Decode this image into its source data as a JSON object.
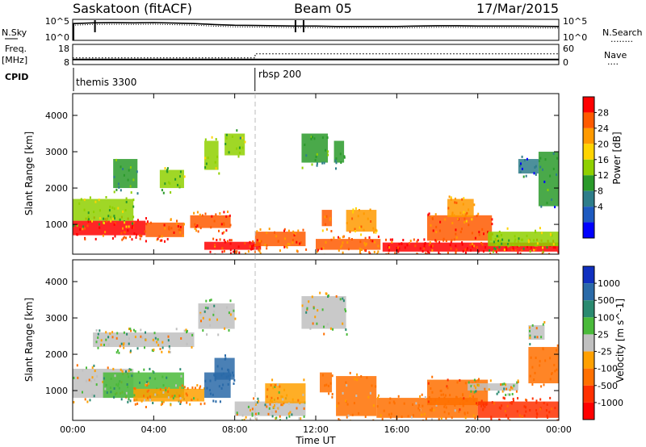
{
  "header": {
    "site": "Saskatoon (fitACF)",
    "beam": "Beam 05",
    "date": "17/Mar/2015"
  },
  "noise_panel": {
    "left_label": "N.Sky",
    "left_ticks": [
      "10^5",
      "10^0"
    ],
    "right_ticks": [
      "10^5",
      "10^0"
    ],
    "right_label": "N.Search",
    "right_key": "........"
  },
  "freq_panel": {
    "left_label_1": "Freq.",
    "left_label_2": "[MHz]",
    "left_ticks": [
      "18",
      "8"
    ],
    "right_ticks": [
      "60",
      "0"
    ],
    "right_label": "Nave",
    "right_key": "....",
    "ylim_left": [
      8,
      18
    ],
    "ylim_right": [
      0,
      60
    ]
  },
  "cpid_panel": {
    "label": "CPID",
    "modes": [
      {
        "start_hour": 0,
        "name": "themis 3300"
      },
      {
        "start_hour": 9,
        "name": "rbsp 200"
      }
    ]
  },
  "x_axis": {
    "label": "Time UT",
    "ticks": [
      "00:00",
      "04:00",
      "08:00",
      "12:00",
      "16:00",
      "20:00",
      "00:00"
    ],
    "range_hours": [
      0,
      24
    ]
  },
  "power_colorbar": {
    "label": "Power [dB]",
    "ticks": [
      "28",
      "24",
      "20",
      "16",
      "12",
      "8",
      "4"
    ],
    "colors": [
      "#ff0000",
      "#ff5a00",
      "#ff9a00",
      "#ffd400",
      "#8fd000",
      "#2a9a2a",
      "#2e7d8a",
      "#1e5ac0",
      "#0000ff"
    ]
  },
  "velocity_colorbar": {
    "label": "Velocity [m s^-1]",
    "ticks": [
      "1000",
      "500",
      "100",
      "25",
      "-25",
      "-100",
      "-500",
      "-1000"
    ],
    "colors": [
      "#1030c0",
      "#2a6aa8",
      "#2a8a70",
      "#4aba3a",
      "#c0c0c0",
      "#ffa000",
      "#ff7000",
      "#ff3000",
      "#ff0000"
    ]
  },
  "chart_data": [
    {
      "type": "line",
      "series": [
        {
          "x": [
            0,
            0.5,
            1,
            2,
            3,
            4,
            5,
            6,
            7,
            8,
            9,
            10,
            11,
            12,
            13,
            14,
            15,
            16,
            17,
            18,
            19,
            20,
            21,
            22,
            23,
            24
          ],
          "y": [
            10000,
            12000,
            15000,
            16000,
            15000,
            17000,
            13000,
            10000,
            6000,
            4000,
            3500,
            3000,
            2500,
            2500,
            2000,
            2000,
            2000,
            2000,
            2500,
            3000,
            3000,
            2500,
            2500,
            2500,
            2200,
            2000
          ]
        }
      ],
      "yscale": "log",
      "ylim": [
        1,
        100000
      ]
    },
    {
      "type": "line",
      "series": [
        {
          "x": [
            0,
            24
          ],
          "y": [
            10.5,
            10.5
          ]
        },
        {
          "x": [
            0,
            9,
            9.01,
            24
          ],
          "y": [
            20,
            20,
            32,
            32
          ]
        }
      ],
      "ylim": [
        8,
        18
      ]
    },
    {
      "type": "heatmap",
      "xlabel": "Time UT",
      "ylabel": "Slant Range [km]",
      "ylim": [
        180,
        4600
      ],
      "yticks": [
        1000,
        2000,
        3000,
        4000
      ],
      "quantity": "Power [dB]",
      "regions": [
        {
          "t0": 0.0,
          "t1": 3.6,
          "r0": 700,
          "r1": 1100,
          "value": 28
        },
        {
          "t0": 3.6,
          "t1": 5.5,
          "r0": 650,
          "r1": 1050,
          "value": 26
        },
        {
          "t0": 0.0,
          "t1": 3.0,
          "r0": 1100,
          "r1": 1700,
          "value": 14
        },
        {
          "t0": 2.0,
          "t1": 3.2,
          "r0": 2000,
          "r1": 2800,
          "value": 10
        },
        {
          "t0": 4.3,
          "t1": 5.5,
          "r0": 2000,
          "r1": 2500,
          "value": 12
        },
        {
          "t0": 5.8,
          "t1": 7.8,
          "r0": 900,
          "r1": 1250,
          "value": 26
        },
        {
          "t0": 6.5,
          "t1": 7.2,
          "r0": 2500,
          "r1": 3300,
          "value": 14
        },
        {
          "t0": 7.5,
          "t1": 8.5,
          "r0": 2900,
          "r1": 3500,
          "value": 12
        },
        {
          "t0": 6.5,
          "t1": 9.3,
          "r0": 300,
          "r1": 520,
          "value": 28
        },
        {
          "t0": 9.0,
          "t1": 11.5,
          "r0": 400,
          "r1": 800,
          "value": 24
        },
        {
          "t0": 11.3,
          "t1": 12.6,
          "r0": 2700,
          "r1": 3500,
          "value": 10
        },
        {
          "t0": 12.9,
          "t1": 13.4,
          "r0": 2700,
          "r1": 3300,
          "value": 8
        },
        {
          "t0": 12.0,
          "t1": 15.2,
          "r0": 300,
          "r1": 600,
          "value": 26
        },
        {
          "t0": 12.3,
          "t1": 12.8,
          "r0": 950,
          "r1": 1400,
          "value": 24
        },
        {
          "t0": 13.5,
          "t1": 15.0,
          "r0": 800,
          "r1": 1400,
          "value": 20
        },
        {
          "t0": 15.3,
          "t1": 24.0,
          "r0": 250,
          "r1": 500,
          "value": 28
        },
        {
          "t0": 17.5,
          "t1": 20.7,
          "r0": 550,
          "r1": 1250,
          "value": 26
        },
        {
          "t0": 18.5,
          "t1": 19.8,
          "r0": 1200,
          "r1": 1700,
          "value": 22
        },
        {
          "t0": 20.5,
          "t1": 24.0,
          "r0": 400,
          "r1": 800,
          "value": 14
        },
        {
          "t0": 22.0,
          "t1": 23.0,
          "r0": 2400,
          "r1": 2800,
          "value": 6
        },
        {
          "t0": 23.0,
          "t1": 24.0,
          "r0": 1500,
          "r1": 3000,
          "value": 8
        }
      ]
    },
    {
      "type": "heatmap",
      "xlabel": "Time UT",
      "ylabel": "Slant Range [km]",
      "ylim": [
        180,
        4600
      ],
      "yticks": [
        1000,
        2000,
        3000,
        4000
      ],
      "quantity": "Velocity [m s^-1]",
      "regions": [
        {
          "t0": 0.0,
          "t1": 3.0,
          "r0": 800,
          "r1": 1600,
          "value": 0
        },
        {
          "t0": 1.5,
          "t1": 5.5,
          "r0": 800,
          "r1": 1500,
          "value": 50
        },
        {
          "t0": 3.0,
          "t1": 6.5,
          "r0": 700,
          "r1": 1050,
          "value": -80
        },
        {
          "t0": 1.0,
          "t1": 6.0,
          "r0": 2200,
          "r1": 2600,
          "value": 0
        },
        {
          "t0": 6.5,
          "t1": 7.8,
          "r0": 800,
          "r1": 1500,
          "value": 700
        },
        {
          "t0": 7.0,
          "t1": 8.0,
          "r0": 1300,
          "r1": 1900,
          "value": 800
        },
        {
          "t0": 6.2,
          "t1": 8.0,
          "r0": 2700,
          "r1": 3400,
          "value": 0
        },
        {
          "t0": 8.0,
          "t1": 11.5,
          "r0": 300,
          "r1": 700,
          "value": 0
        },
        {
          "t0": 9.5,
          "t1": 11.5,
          "r0": 650,
          "r1": 1200,
          "value": -80
        },
        {
          "t0": 11.3,
          "t1": 13.5,
          "r0": 2700,
          "r1": 3600,
          "value": 0
        },
        {
          "t0": 12.2,
          "t1": 12.8,
          "r0": 950,
          "r1": 1500,
          "value": -300
        },
        {
          "t0": 13.0,
          "t1": 15.0,
          "r0": 300,
          "r1": 1400,
          "value": -150
        },
        {
          "t0": 15.0,
          "t1": 20.0,
          "r0": 250,
          "r1": 800,
          "value": -150
        },
        {
          "t0": 17.5,
          "t1": 20.5,
          "r0": 600,
          "r1": 1300,
          "value": -400
        },
        {
          "t0": 20.0,
          "t1": 24.0,
          "r0": 250,
          "r1": 700,
          "value": -600
        },
        {
          "t0": 19.5,
          "t1": 22.0,
          "r0": 1000,
          "r1": 1200,
          "value": 0
        },
        {
          "t0": 22.5,
          "t1": 24.0,
          "r0": 1200,
          "r1": 2200,
          "value": -300
        },
        {
          "t0": 22.5,
          "t1": 23.3,
          "r0": 2400,
          "r1": 2800,
          "value": 0
        }
      ]
    }
  ]
}
